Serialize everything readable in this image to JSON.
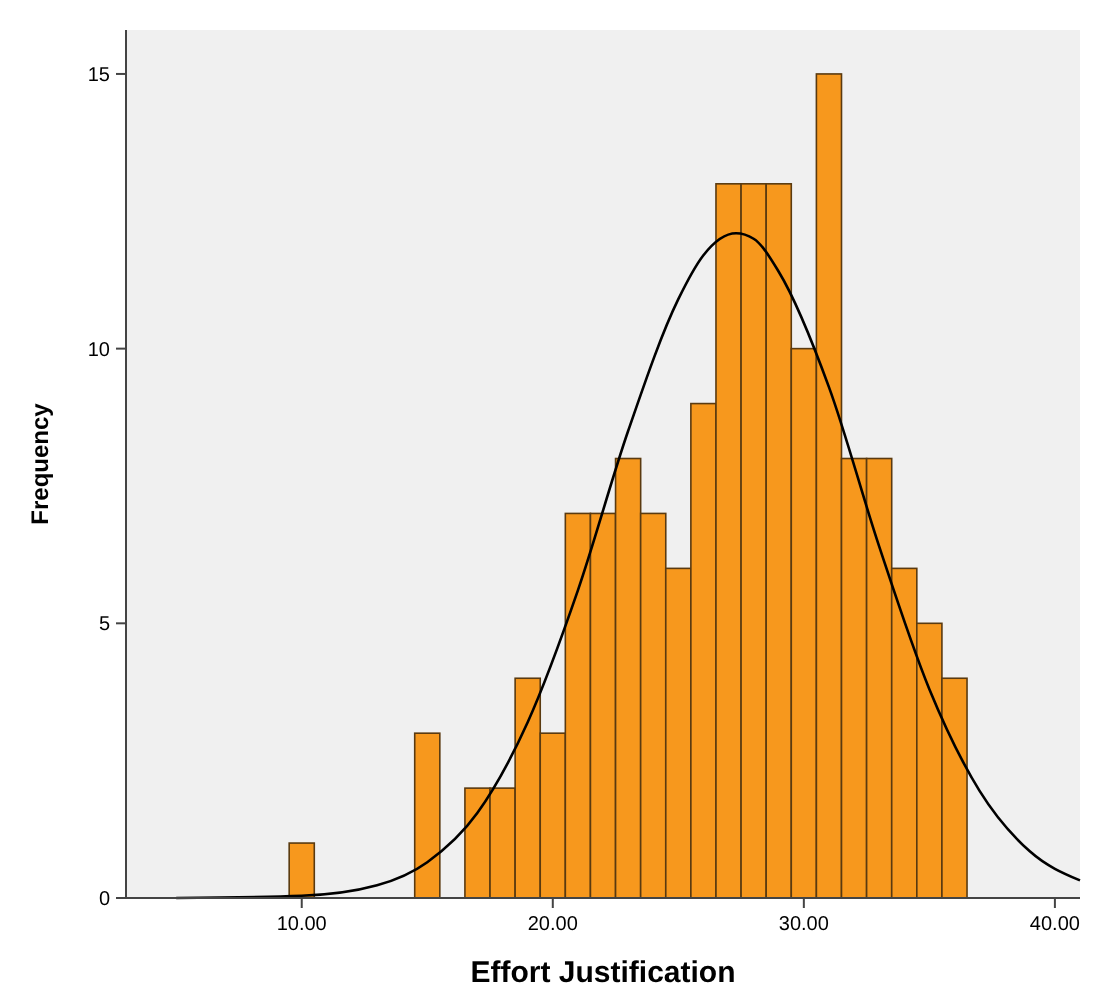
{
  "chart_data": {
    "type": "histogram",
    "xlabel": "Effort Justification",
    "ylabel": "Frequency",
    "bins": [
      9.5,
      10.5,
      11.5,
      12.5,
      13.5,
      14.5,
      15.5,
      16.5,
      17.5,
      18.5,
      19.5,
      20.5,
      21.5,
      22.5,
      23.5,
      24.5,
      25.5,
      26.5,
      27.5,
      28.5,
      29.5,
      30.5,
      31.5,
      32.5,
      33.5,
      34.5,
      35.5,
      36.5
    ],
    "series": [
      {
        "color": "#f7981d",
        "values": [
          1,
          0,
          0,
          0,
          0,
          3,
          0,
          2,
          2,
          4,
          3,
          7,
          7,
          8,
          7,
          6,
          9,
          13,
          13,
          13,
          10,
          15,
          8,
          8,
          6,
          5,
          4
        ]
      },
      {
        "type": "line",
        "color": "#000000",
        "x": [
          5,
          10,
          13,
          15,
          17,
          19,
          21,
          23,
          25,
          26,
          27.3,
          28,
          29,
          31,
          33,
          35,
          37,
          39,
          41
        ],
        "values": [
          0,
          0.04,
          0.23,
          0.65,
          1.55,
          3.2,
          5.6,
          8.5,
          10.9,
          11.7,
          12.1,
          12,
          11.4,
          9.3,
          6.4,
          3.8,
          1.95,
          0.85,
          0.32
        ]
      }
    ],
    "xlim": [
      3,
      41
    ],
    "ylim": [
      0,
      15.8
    ],
    "xticks": [
      {
        "value": 10,
        "label": "10.00"
      },
      {
        "value": 20,
        "label": "20.00"
      },
      {
        "value": 30,
        "label": "30.00"
      },
      {
        "value": 40,
        "label": "40.00"
      }
    ],
    "yticks": [
      0,
      5,
      10,
      15
    ],
    "grid": false,
    "marker": "none",
    "line_style": "solid"
  }
}
